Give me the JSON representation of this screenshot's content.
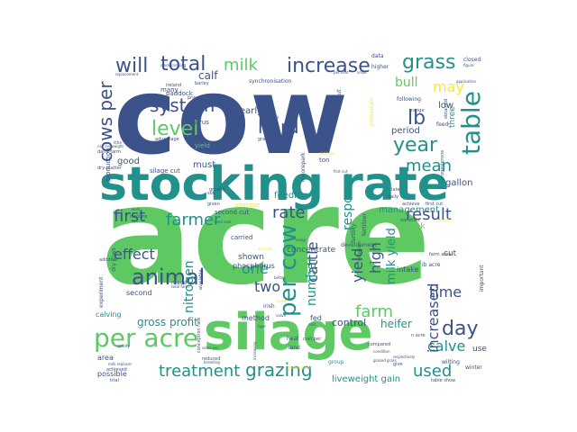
{
  "wordcloud": {
    "palette": {
      "indigo": "#3b528b",
      "teal": "#21918c",
      "green": "#5ec962",
      "yellow": "#fde725",
      "purple": "#440154",
      "blue": "#31688e"
    },
    "words": [
      {
        "text": "acre",
        "color": "#5ec962",
        "weight": 1.0
      },
      {
        "text": "cow",
        "color": "#3b528b",
        "weight": 0.92
      },
      {
        "text": "stocking rate",
        "color": "#21918c",
        "weight": 0.62
      },
      {
        "text": "silage",
        "color": "#5ec962",
        "weight": 0.5
      },
      {
        "text": "per acre",
        "color": "#5ec962",
        "weight": 0.3
      },
      {
        "text": "per cow",
        "color": "#21918c",
        "weight": 0.28
      },
      {
        "text": "table",
        "color": "#21918c",
        "weight": 0.27
      },
      {
        "text": "animal",
        "color": "#3b528b",
        "weight": 0.24
      },
      {
        "text": "increase",
        "color": "#3b528b",
        "weight": 0.22
      },
      {
        "text": "grass",
        "color": "#21918c",
        "weight": 0.22
      },
      {
        "text": "will",
        "color": "#3b528b",
        "weight": 0.21
      },
      {
        "text": "total",
        "color": "#3b528b",
        "weight": 0.21
      },
      {
        "text": "milk",
        "color": "#5ec962",
        "weight": 0.16
      },
      {
        "text": "system",
        "color": "#3b528b",
        "weight": 0.2
      },
      {
        "text": "level",
        "color": "#5ec962",
        "weight": 0.2
      },
      {
        "text": "herd",
        "color": "#3b528b",
        "weight": 0.2
      },
      {
        "text": "lb",
        "color": "#3b528b",
        "weight": 0.22
      },
      {
        "text": "year",
        "color": "#21918c",
        "weight": 0.21
      },
      {
        "text": "mean",
        "color": "#21918c",
        "weight": 0.18
      },
      {
        "text": "cows per",
        "color": "#3b528b",
        "weight": 0.2
      },
      {
        "text": "grazing",
        "color": "#21918c",
        "weight": 0.2
      },
      {
        "text": "treatment",
        "color": "#21918c",
        "weight": 0.2
      },
      {
        "text": "farmer",
        "color": "#21918c",
        "weight": 0.19
      },
      {
        "text": "first",
        "color": "#3b528b",
        "weight": 0.18
      },
      {
        "text": "result",
        "color": "#3b528b",
        "weight": 0.19
      },
      {
        "text": "rate",
        "color": "#3b528b",
        "weight": 0.18
      },
      {
        "text": "effect",
        "color": "#3b528b",
        "weight": 0.18
      },
      {
        "text": "farm",
        "color": "#5ec962",
        "weight": 0.17
      },
      {
        "text": "cattle",
        "color": "#3b528b",
        "weight": 0.16
      },
      {
        "text": "day",
        "color": "#3b528b",
        "weight": 0.2
      },
      {
        "text": "used",
        "color": "#21918c",
        "weight": 0.19
      },
      {
        "text": "calve",
        "color": "#21918c",
        "weight": 0.16
      },
      {
        "text": "time",
        "color": "#3b528b",
        "weight": 0.16
      },
      {
        "text": "increased",
        "color": "#3b528b",
        "weight": 0.16
      },
      {
        "text": "yield",
        "color": "#3b528b",
        "weight": 0.16
      },
      {
        "text": "high",
        "color": "#3b528b",
        "weight": 0.16
      },
      {
        "text": "may",
        "color": "#fde725",
        "weight": 0.15
      },
      {
        "text": "bull",
        "color": "#5ec962",
        "weight": 0.13
      },
      {
        "text": "nitrogen",
        "color": "#21918c",
        "weight": 0.14
      },
      {
        "text": "one",
        "color": "#21918c",
        "weight": 0.16
      },
      {
        "text": "two",
        "color": "#3b528b",
        "weight": 0.16
      },
      {
        "text": "number",
        "color": "#21918c",
        "weight": 0.15
      },
      {
        "text": "response",
        "color": "#21918c",
        "weight": 0.14
      },
      {
        "text": "milk yield",
        "color": "#21918c",
        "weight": 0.13
      },
      {
        "text": "calf",
        "color": "#3b528b",
        "weight": 0.12
      },
      {
        "text": "control",
        "color": "#3b528b",
        "weight": 0.1
      },
      {
        "text": "heifer",
        "color": "#21918c",
        "weight": 0.12
      },
      {
        "text": "gross profit",
        "color": "#21918c",
        "weight": 0.12
      },
      {
        "text": "liveweight gain",
        "color": "#21918c",
        "weight": 0.09
      },
      {
        "text": "concentrate",
        "color": "#3b528b",
        "weight": 0.08
      },
      {
        "text": "management",
        "color": "#21918c",
        "weight": 0.09
      },
      {
        "text": "feeding",
        "color": "#21918c",
        "weight": 0.09
      },
      {
        "text": "good",
        "color": "#3b528b",
        "weight": 0.09
      },
      {
        "text": "early",
        "color": "#3b528b",
        "weight": 0.09
      },
      {
        "text": "period",
        "color": "#3b528b",
        "weight": 0.09
      },
      {
        "text": "gallon",
        "color": "#3b528b",
        "weight": 0.09
      },
      {
        "text": "must",
        "color": "#3b528b",
        "weight": 0.09
      },
      {
        "text": "low",
        "color": "#3b528b",
        "weight": 0.09
      },
      {
        "text": "three",
        "color": "#21918c",
        "weight": 0.08
      },
      {
        "text": "cut",
        "color": "#3b528b",
        "weight": 0.08
      },
      {
        "text": "week",
        "color": "#5ec962",
        "weight": 0.08
      },
      {
        "text": "shown",
        "color": "#3b528b",
        "weight": 0.08
      },
      {
        "text": "phosphorus",
        "color": "#3b528b",
        "weight": 0.07
      },
      {
        "text": "second",
        "color": "#3b528b",
        "weight": 0.07
      },
      {
        "text": "calving",
        "color": "#21918c",
        "weight": 0.07
      },
      {
        "text": "use",
        "color": "#3b528b",
        "weight": 0.08
      },
      {
        "text": "area",
        "color": "#3b528b",
        "weight": 0.07
      },
      {
        "text": "possible",
        "color": "#3b528b",
        "weight": 0.07
      },
      {
        "text": "fed",
        "color": "#3b528b",
        "weight": 0.07
      },
      {
        "text": "method",
        "color": "#3b528b",
        "weight": 0.06
      },
      {
        "text": "intake",
        "color": "#3b528b",
        "weight": 0.06
      },
      {
        "text": "development",
        "color": "#3b528b",
        "weight": 0.05
      },
      {
        "text": "paddock",
        "color": "#3b528b",
        "weight": 0.06
      },
      {
        "text": "oestrus",
        "color": "#3b528b",
        "weight": 0.06
      },
      {
        "text": "many",
        "color": "#3b528b",
        "weight": 0.06
      },
      {
        "text": "production",
        "color": "#3b528b",
        "weight": 0.05
      },
      {
        "text": "silage cut",
        "color": "#3b528b",
        "weight": 0.05
      },
      {
        "text": "yield",
        "color": "#5ec962",
        "weight": 0.06
      },
      {
        "text": "carried",
        "color": "#3b528b",
        "weight": 0.05
      },
      {
        "text": "average",
        "color": "#fde725",
        "weight": 0.05
      },
      {
        "text": "second cut",
        "color": "#3b528b",
        "weight": 0.05
      },
      {
        "text": "ton",
        "color": "#3b528b",
        "weight": 0.05
      },
      {
        "text": "potassium",
        "color": "#fde725",
        "weight": 0.05
      },
      {
        "text": "fertility",
        "color": "#3b528b",
        "weight": 0.04
      },
      {
        "text": "fertilizer",
        "color": "#3b528b",
        "weight": 0.04
      },
      {
        "text": "ib acre",
        "color": "#3b528b",
        "weight": 0.04
      },
      {
        "text": "important",
        "color": "#3b528b",
        "weight": 0.04
      },
      {
        "text": "experiment",
        "color": "#3b528b",
        "weight": 0.04
      },
      {
        "text": "dry cows",
        "color": "#3b528b",
        "weight": 0.04
      },
      {
        "text": "made",
        "color": "#3b528b",
        "weight": 0.04
      },
      {
        "text": "irish",
        "color": "#3b528b",
        "weight": 0.04
      },
      {
        "text": "land",
        "color": "#3b528b",
        "weight": 0.04
      },
      {
        "text": "heat",
        "color": "#3b528b",
        "weight": 0.04
      },
      {
        "text": "group",
        "color": "#21918c",
        "weight": 0.04
      },
      {
        "text": "wilting",
        "color": "#3b528b",
        "weight": 0.03
      },
      {
        "text": "winter",
        "color": "#3b528b",
        "weight": 0.03
      },
      {
        "text": "following",
        "color": "#3b528b",
        "weight": 0.04
      },
      {
        "text": "higher",
        "color": "#3b528b",
        "weight": 0.04
      },
      {
        "text": "closed",
        "color": "#3b528b",
        "weight": 0.04
      },
      {
        "text": "data",
        "color": "#3b528b",
        "weight": 0.04
      },
      {
        "text": "synchronisation",
        "color": "#3b528b",
        "weight": 0.04
      },
      {
        "text": "moorepark",
        "color": "#3b528b",
        "weight": 0.04
      },
      {
        "text": "without",
        "color": "#3b528b",
        "weight": 0.04
      },
      {
        "text": "feed",
        "color": "#3b528b",
        "weight": 0.04
      },
      {
        "text": "situation",
        "color": "#3b528b",
        "weight": 0.04
      },
      {
        "text": "progesterone",
        "color": "#3b528b",
        "weight": 0.03
      },
      {
        "text": "additive",
        "color": "#3b528b",
        "weight": 0.03
      },
      {
        "text": "mixture",
        "color": "#3b528b",
        "weight": 0.03
      },
      {
        "text": "available",
        "color": "#3b528b",
        "weight": 0.03
      },
      {
        "text": "conception rate",
        "color": "#3b528b",
        "weight": 0.03
      },
      {
        "text": "dairy farm",
        "color": "#3b528b",
        "weight": 0.03
      },
      {
        "text": "barley",
        "color": "#3b528b",
        "weight": 0.03
      },
      {
        "text": "ireland",
        "color": "#3b528b",
        "weight": 0.03
      },
      {
        "text": "price",
        "color": "#3b528b",
        "weight": 0.03
      },
      {
        "text": "advantage",
        "color": "#3b528b",
        "weight": 0.03
      },
      {
        "text": "grassland",
        "color": "#3b528b",
        "weight": 0.03
      },
      {
        "text": "dry matter",
        "color": "#3b528b",
        "weight": 0.03
      },
      {
        "text": "first cut",
        "color": "#3b528b",
        "weight": 0.03
      },
      {
        "text": "achieve",
        "color": "#3b528b",
        "weight": 0.03
      },
      {
        "text": "varieties",
        "color": "#3b528b",
        "weight": 0.03
      },
      {
        "text": "compared",
        "color": "#3b528b",
        "weight": 0.03
      },
      {
        "text": "farm area",
        "color": "#3b528b",
        "weight": 0.03
      },
      {
        "text": "cost per",
        "color": "#3b528b",
        "weight": 0.03
      },
      {
        "text": "reduced",
        "color": "#3b528b",
        "weight": 0.03
      },
      {
        "text": "table show",
        "color": "#3b528b",
        "weight": 0.03
      },
      {
        "text": "trial",
        "color": "#3b528b",
        "weight": 0.03
      },
      {
        "text": "n acre",
        "color": "#3b528b",
        "weight": 0.03
      },
      {
        "text": "give",
        "color": "#3b528b",
        "weight": 0.03
      },
      {
        "text": "achieved",
        "color": "#3b528b",
        "weight": 0.03
      },
      {
        "text": "case",
        "color": "#fde725",
        "weight": 0.03
      },
      {
        "text": "soil",
        "color": "#3b528b",
        "weight": 0.03
      },
      {
        "text": "given",
        "color": "#3b528b",
        "weight": 0.03
      },
      {
        "text": "growth",
        "color": "#3b528b",
        "weight": 0.03
      },
      {
        "text": "late",
        "color": "#3b528b",
        "weight": 0.03
      },
      {
        "text": "daily",
        "color": "#3b528b",
        "weight": 0.03
      },
      {
        "text": "range",
        "color": "#3b528b",
        "weight": 0.03
      },
      {
        "text": "obtained",
        "color": "#3b528b",
        "weight": 0.03
      },
      {
        "text": "application",
        "color": "#3b528b",
        "weight": 0.02
      },
      {
        "text": "figure",
        "color": "#3b528b",
        "weight": 0.02
      },
      {
        "text": "small",
        "color": "#3b528b",
        "weight": 0.02
      },
      {
        "text": "quality",
        "color": "#3b528b",
        "weight": 0.02
      },
      {
        "text": "breeding",
        "color": "#3b528b",
        "weight": 0.02
      },
      {
        "text": "milk replacer",
        "color": "#3b528b",
        "weight": 0.02
      },
      {
        "text": "sales per",
        "color": "#3b528b",
        "weight": 0.02
      },
      {
        "text": "performance",
        "color": "#fde725",
        "weight": 0.02
      },
      {
        "text": "respectively",
        "color": "#3b528b",
        "weight": 0.02
      },
      {
        "text": "total farm",
        "color": "#3b528b",
        "weight": 0.02
      },
      {
        "text": "replacement",
        "color": "#3b528b",
        "weight": 0.02
      },
      {
        "text": "stock carrying",
        "color": "#3b528b",
        "weight": 0.02
      },
      {
        "text": "calf liveweight",
        "color": "#3b528b",
        "weight": 0.02
      },
      {
        "text": "feed cost",
        "color": "#3b528b",
        "weight": 0.02
      },
      {
        "text": "increasing",
        "color": "#3b528b",
        "weight": 0.02
      },
      {
        "text": "better",
        "color": "#3b528b",
        "weight": 0.02
      },
      {
        "text": "type",
        "color": "#3b528b",
        "weight": 0.02
      },
      {
        "text": "amount",
        "color": "#fde725",
        "weight": 0.02
      },
      {
        "text": "using",
        "color": "#3b528b",
        "weight": 0.02
      },
      {
        "text": "work",
        "color": "#3b528b",
        "weight": 0.02
      },
      {
        "text": "required",
        "color": "#3b528b",
        "weight": 0.02
      },
      {
        "text": "value",
        "color": "#3b528b",
        "weight": 0.02
      },
      {
        "text": "cost",
        "color": "#3b528b",
        "weight": 0.02
      },
      {
        "text": "little",
        "color": "#3b528b",
        "weight": 0.02
      },
      {
        "text": "yield per",
        "color": "#fde725",
        "weight": 0.02
      },
      {
        "text": "first cut",
        "color": "#3b528b",
        "weight": 0.02
      },
      {
        "text": "condition",
        "color": "#3b528b",
        "weight": 0.02
      },
      {
        "text": "usually",
        "color": "#fde725",
        "weight": 0.02
      },
      {
        "text": "grazed grass",
        "color": "#3b528b",
        "weight": 0.02
      },
      {
        "text": "per cent",
        "color": "#3b528b",
        "weight": 0.02
      }
    ]
  }
}
